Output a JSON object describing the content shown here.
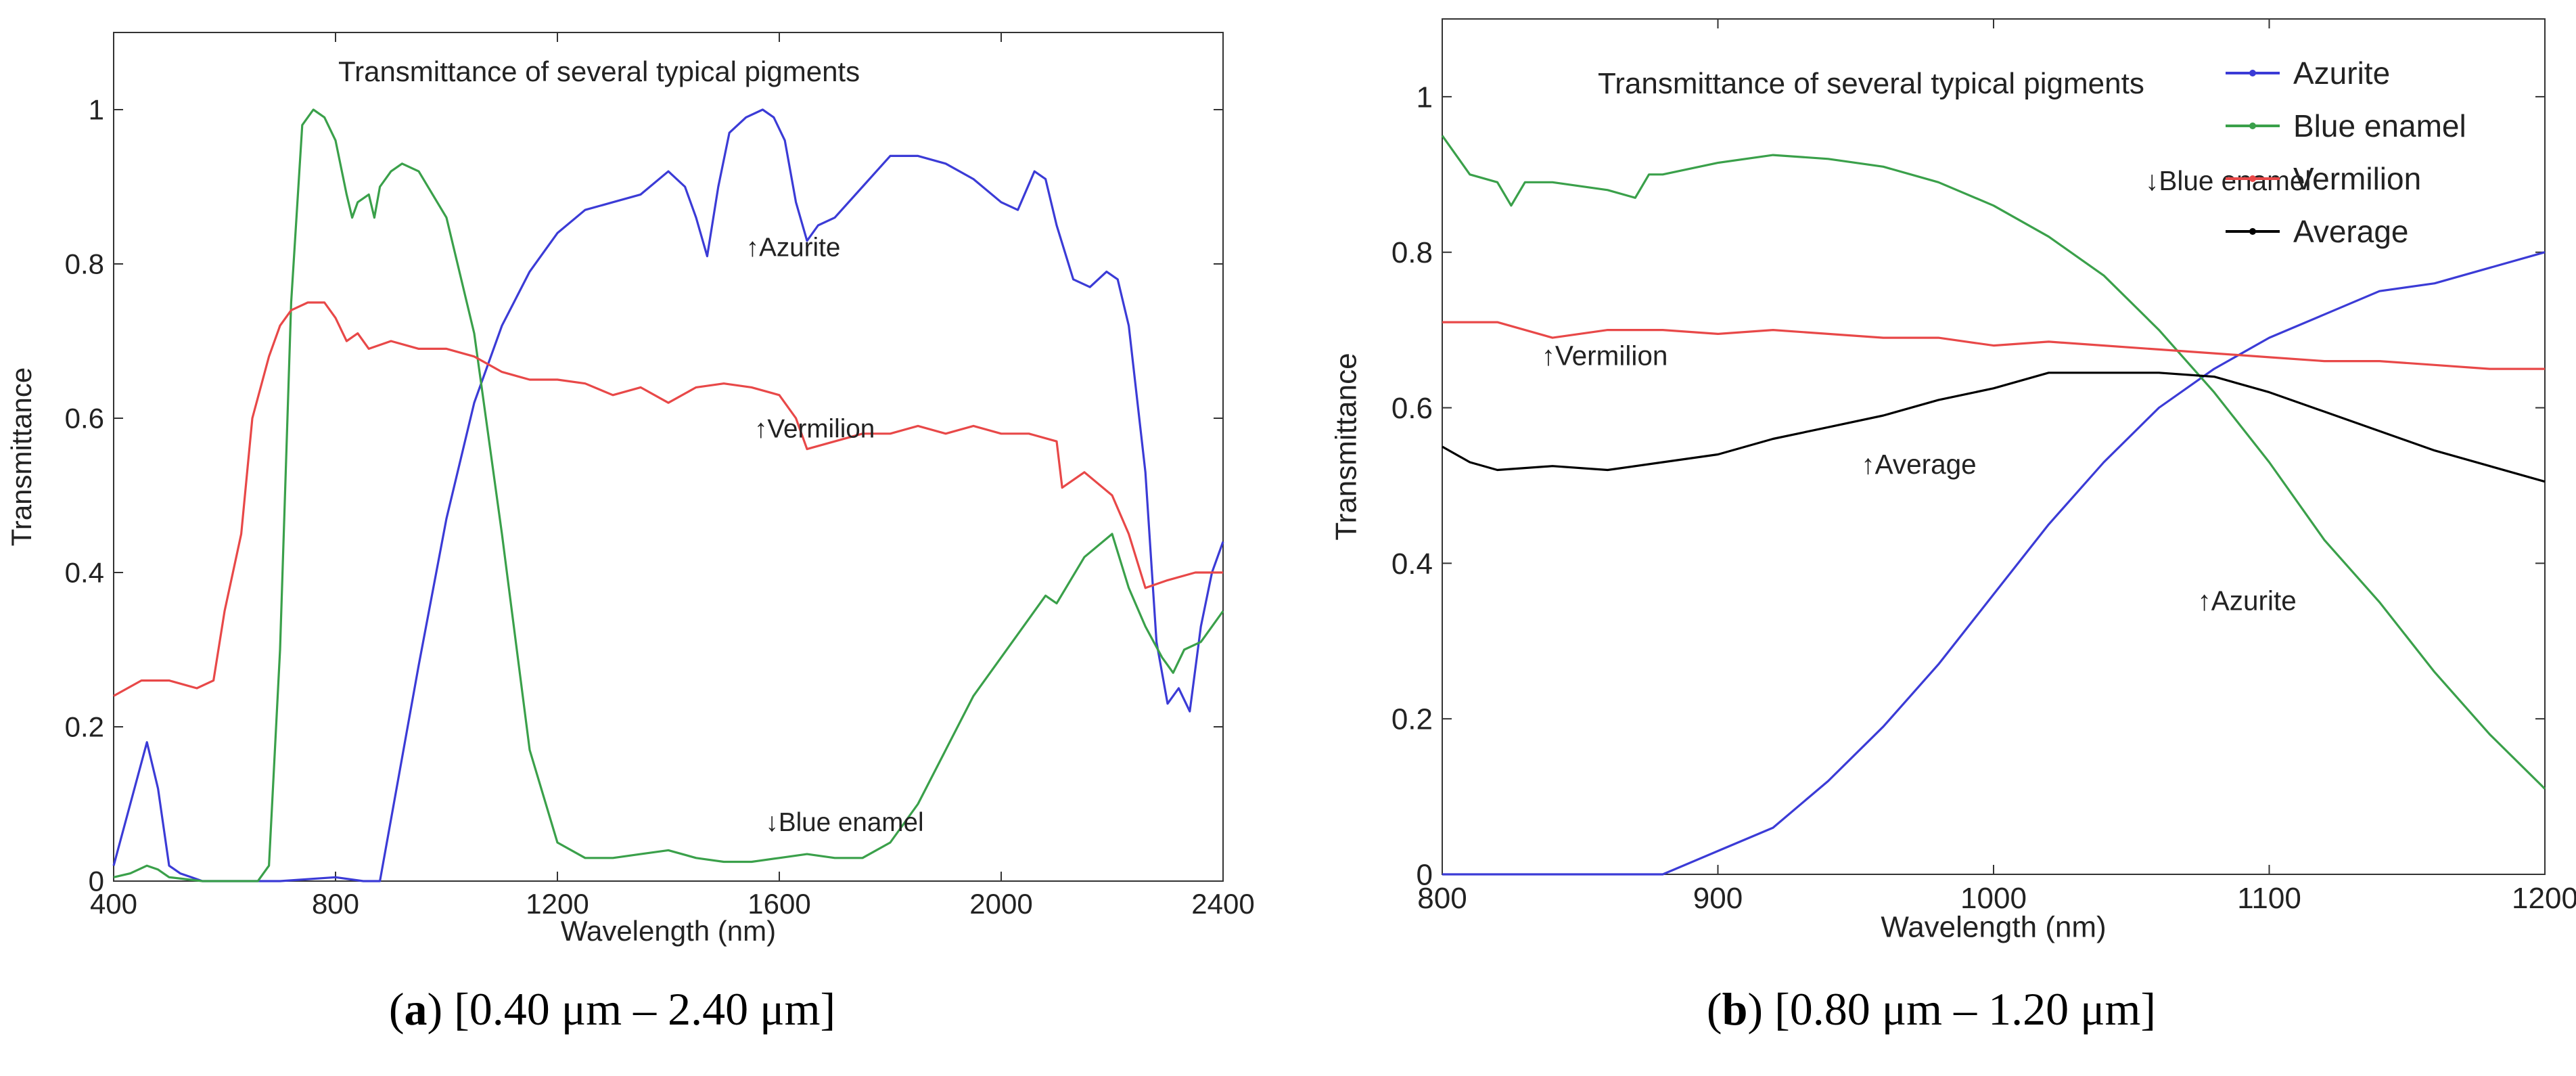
{
  "chart_data": [
    {
      "id": "a",
      "type": "line",
      "title": "Transmittance of several typical pigments",
      "xlabel": "Wavelength (nm)",
      "ylabel": "Transmittance",
      "xlim": [
        400,
        2400
      ],
      "ylim": [
        0,
        1.1
      ],
      "xticks": [
        400,
        800,
        1200,
        1600,
        2000,
        2400
      ],
      "yticks": [
        0,
        0.2,
        0.4,
        0.6,
        0.8,
        1
      ],
      "legend": null,
      "caption": {
        "letter": "a",
        "text": "[0.40 μm – 2.40 μm]"
      },
      "series": [
        {
          "name": "Azurite",
          "color": "#3b3bd6",
          "x": [
            400,
            430,
            460,
            480,
            500,
            520,
            540,
            560,
            600,
            700,
            800,
            850,
            880,
            900,
            950,
            1000,
            1050,
            1100,
            1150,
            1200,
            1250,
            1300,
            1350,
            1400,
            1430,
            1450,
            1470,
            1490,
            1510,
            1540,
            1570,
            1590,
            1610,
            1630,
            1650,
            1670,
            1700,
            1750,
            1800,
            1850,
            1900,
            1950,
            2000,
            2030,
            2060,
            2080,
            2100,
            2130,
            2160,
            2190,
            2210,
            2230,
            2260,
            2280,
            2300,
            2320,
            2340,
            2360,
            2380,
            2400
          ],
          "y": [
            0.02,
            0.1,
            0.18,
            0.12,
            0.02,
            0.01,
            0.005,
            0,
            0,
            0,
            0.005,
            0,
            0,
            0.08,
            0.28,
            0.47,
            0.62,
            0.72,
            0.79,
            0.84,
            0.87,
            0.88,
            0.89,
            0.92,
            0.9,
            0.86,
            0.81,
            0.9,
            0.97,
            0.99,
            1.0,
            0.99,
            0.96,
            0.88,
            0.83,
            0.85,
            0.86,
            0.9,
            0.94,
            0.94,
            0.93,
            0.91,
            0.88,
            0.87,
            0.92,
            0.91,
            0.85,
            0.78,
            0.77,
            0.79,
            0.78,
            0.72,
            0.53,
            0.31,
            0.23,
            0.25,
            0.22,
            0.33,
            0.4,
            0.44
          ]
        },
        {
          "name": "Blue enamel",
          "color": "#3aa04a",
          "x": [
            400,
            430,
            460,
            480,
            500,
            560,
            620,
            660,
            680,
            700,
            720,
            740,
            760,
            780,
            800,
            820,
            830,
            840,
            860,
            870,
            880,
            900,
            920,
            950,
            1000,
            1050,
            1100,
            1150,
            1200,
            1250,
            1300,
            1350,
            1400,
            1450,
            1500,
            1550,
            1600,
            1650,
            1700,
            1750,
            1800,
            1850,
            1900,
            1950,
            2000,
            2050,
            2080,
            2100,
            2150,
            2200,
            2230,
            2260,
            2290,
            2310,
            2330,
            2360,
            2400
          ],
          "y": [
            0.005,
            0.01,
            0.02,
            0.015,
            0.005,
            0,
            0,
            0,
            0.02,
            0.3,
            0.75,
            0.98,
            1.0,
            0.99,
            0.96,
            0.89,
            0.86,
            0.88,
            0.89,
            0.86,
            0.9,
            0.92,
            0.93,
            0.92,
            0.86,
            0.71,
            0.45,
            0.17,
            0.05,
            0.03,
            0.03,
            0.035,
            0.04,
            0.03,
            0.025,
            0.025,
            0.03,
            0.035,
            0.03,
            0.03,
            0.05,
            0.1,
            0.17,
            0.24,
            0.29,
            0.34,
            0.37,
            0.36,
            0.42,
            0.45,
            0.38,
            0.33,
            0.29,
            0.27,
            0.3,
            0.31,
            0.35
          ]
        },
        {
          "name": "Vermilion",
          "color": "#e84848",
          "x": [
            400,
            450,
            500,
            550,
            580,
            600,
            630,
            650,
            680,
            700,
            720,
            750,
            780,
            800,
            820,
            840,
            860,
            900,
            950,
            1000,
            1050,
            1100,
            1150,
            1200,
            1250,
            1300,
            1350,
            1400,
            1450,
            1500,
            1550,
            1600,
            1630,
            1650,
            1700,
            1750,
            1800,
            1850,
            1900,
            1950,
            2000,
            2050,
            2100,
            2110,
            2150,
            2200,
            2230,
            2260,
            2300,
            2350,
            2400
          ],
          "y": [
            0.24,
            0.26,
            0.26,
            0.25,
            0.26,
            0.35,
            0.45,
            0.6,
            0.68,
            0.72,
            0.74,
            0.75,
            0.75,
            0.73,
            0.7,
            0.71,
            0.69,
            0.7,
            0.69,
            0.69,
            0.68,
            0.66,
            0.65,
            0.65,
            0.645,
            0.63,
            0.64,
            0.62,
            0.64,
            0.645,
            0.64,
            0.63,
            0.6,
            0.56,
            0.57,
            0.58,
            0.58,
            0.59,
            0.58,
            0.59,
            0.58,
            0.58,
            0.57,
            0.51,
            0.53,
            0.5,
            0.45,
            0.38,
            0.39,
            0.4,
            0.4
          ]
        }
      ],
      "annotations": [
        {
          "text": "↑Azurite",
          "x": 1540,
          "y": 0.81
        },
        {
          "text": "↑Vermilion",
          "x": 1555,
          "y": 0.575
        },
        {
          "text": "↓Blue enamel",
          "x": 1575,
          "y": 0.065
        }
      ]
    },
    {
      "id": "b",
      "type": "line",
      "title": "Transmittance of several typical pigments",
      "xlabel": "Wavelength (nm)",
      "ylabel": "Transmittance",
      "xlim": [
        800,
        1200
      ],
      "ylim": [
        0,
        1.1
      ],
      "xticks": [
        800,
        900,
        1000,
        1100,
        1200
      ],
      "yticks": [
        0,
        0.2,
        0.4,
        0.6,
        0.8,
        1
      ],
      "legend": "top-right",
      "caption": {
        "letter": "b",
        "text": "[0.80 μm – 1.20 μm]"
      },
      "series": [
        {
          "name": "Azurite",
          "color": "#3b3bd6",
          "x": [
            800,
            850,
            880,
            900,
            920,
            940,
            960,
            980,
            1000,
            1020,
            1040,
            1060,
            1080,
            1100,
            1120,
            1140,
            1160,
            1180,
            1200
          ],
          "y": [
            0,
            0,
            0,
            0.03,
            0.06,
            0.12,
            0.19,
            0.27,
            0.36,
            0.45,
            0.53,
            0.6,
            0.65,
            0.69,
            0.72,
            0.75,
            0.76,
            0.78,
            0.8
          ]
        },
        {
          "name": "Blue enamel",
          "color": "#3aa04a",
          "x": [
            800,
            810,
            820,
            825,
            830,
            840,
            860,
            870,
            875,
            880,
            900,
            920,
            940,
            960,
            980,
            1000,
            1020,
            1040,
            1060,
            1080,
            1100,
            1120,
            1140,
            1160,
            1180,
            1200
          ],
          "y": [
            0.95,
            0.9,
            0.89,
            0.86,
            0.89,
            0.89,
            0.88,
            0.87,
            0.9,
            0.9,
            0.915,
            0.925,
            0.92,
            0.91,
            0.89,
            0.86,
            0.82,
            0.77,
            0.7,
            0.62,
            0.53,
            0.43,
            0.35,
            0.26,
            0.18,
            0.11
          ]
        },
        {
          "name": "Vermilion",
          "color": "#e84848",
          "x": [
            800,
            820,
            840,
            860,
            880,
            900,
            920,
            940,
            960,
            980,
            1000,
            1020,
            1040,
            1060,
            1080,
            1100,
            1120,
            1140,
            1160,
            1180,
            1200
          ],
          "y": [
            0.71,
            0.71,
            0.69,
            0.7,
            0.7,
            0.695,
            0.7,
            0.695,
            0.69,
            0.69,
            0.68,
            0.685,
            0.68,
            0.675,
            0.67,
            0.665,
            0.66,
            0.66,
            0.655,
            0.65,
            0.65
          ]
        },
        {
          "name": "Average",
          "color": "#000000",
          "x": [
            800,
            810,
            820,
            840,
            860,
            880,
            900,
            920,
            940,
            960,
            980,
            1000,
            1020,
            1040,
            1060,
            1080,
            1100,
            1120,
            1140,
            1160,
            1180,
            1200
          ],
          "y": [
            0.55,
            0.53,
            0.52,
            0.525,
            0.52,
            0.53,
            0.54,
            0.56,
            0.575,
            0.59,
            0.61,
            0.625,
            0.645,
            0.645,
            0.645,
            0.64,
            0.62,
            0.595,
            0.57,
            0.545,
            0.525,
            0.505
          ]
        }
      ],
      "annotations": [
        {
          "text": "↓Blue enamel",
          "x": 1055,
          "y": 0.88
        },
        {
          "text": "↑Vermilion",
          "x": 836,
          "y": 0.655
        },
        {
          "text": "↑Average",
          "x": 952,
          "y": 0.515
        },
        {
          "text": "↑Azurite",
          "x": 1074,
          "y": 0.34
        }
      ]
    }
  ]
}
